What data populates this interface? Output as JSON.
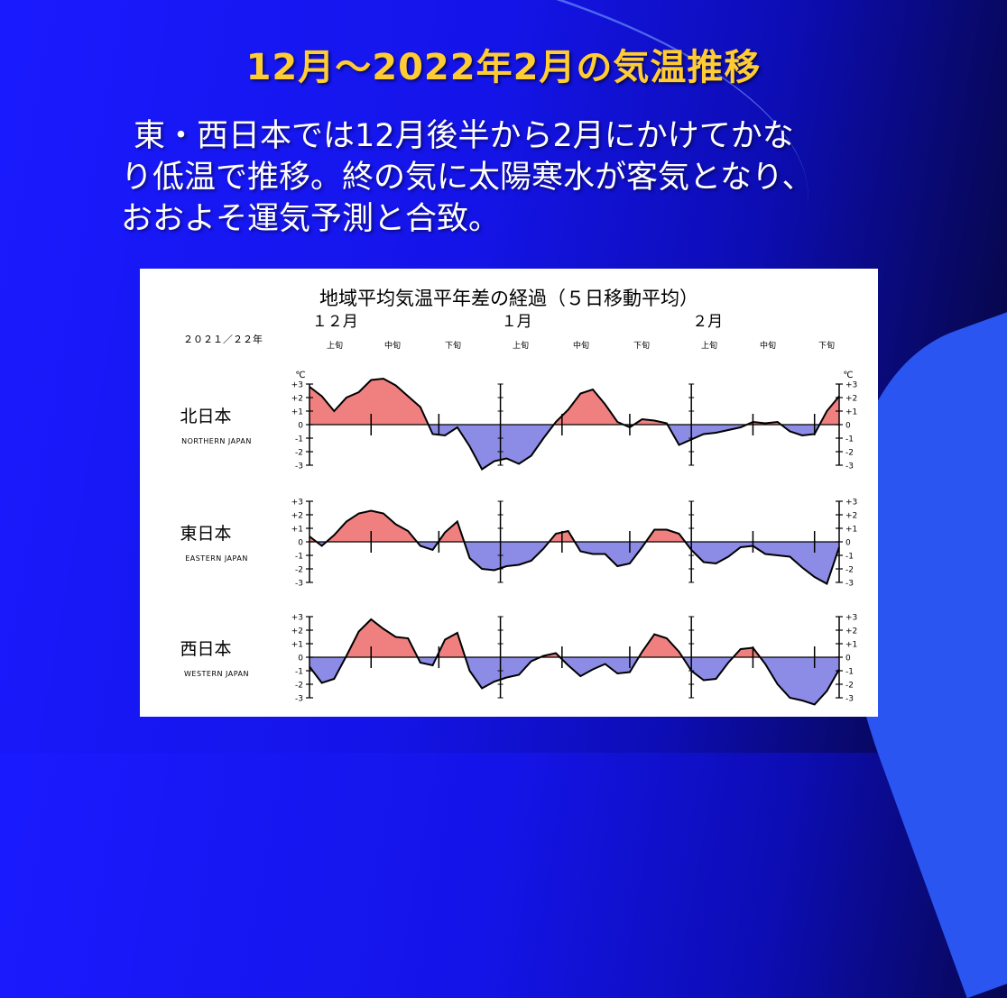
{
  "slide": {
    "title": "12月～2022年2月の気温推移",
    "body_lines": [
      "東・西日本では12月後半から2月にかけてかな",
      "り低温で推移。終の気に太陽寒水が客気となり、",
      "おおよそ運気予測と合致。"
    ]
  },
  "colors": {
    "title": "#ffcc33",
    "positive_fill": "#f08080",
    "negative_fill": "#8c8ce6",
    "line": "#000000"
  },
  "chart_data": {
    "type": "area",
    "title": "地域平均気温平年差の経過（５日移動平均）",
    "year_label": "２０２１／２２年",
    "unit": "℃",
    "months": [
      "１２月",
      "１月",
      "２月"
    ],
    "dekads": [
      "上旬",
      "中旬",
      "下旬",
      "上旬",
      "中旬",
      "下旬",
      "上旬",
      "中旬",
      "下旬"
    ],
    "x_range": [
      1,
      87
    ],
    "ylim": [
      -3,
      3
    ],
    "ytick_labels": [
      "+3",
      "+2",
      "+1",
      "0",
      "-1",
      "-2",
      "-3"
    ],
    "series": [
      {
        "name": "北日本",
        "name_en": "NORTHERN JAPAN",
        "x": [
          1,
          3,
          5,
          7,
          9,
          11,
          13,
          15,
          17,
          19,
          21,
          23,
          25,
          27,
          29,
          31,
          33,
          35,
          37,
          39,
          41,
          43,
          45,
          47,
          49,
          51,
          53,
          55,
          57,
          59,
          61,
          63,
          65,
          67,
          69,
          71,
          73,
          75,
          77,
          79,
          81,
          83,
          85,
          87
        ],
        "values": [
          2.8,
          2.1,
          1.0,
          2.0,
          2.4,
          3.3,
          3.4,
          2.9,
          2.1,
          1.3,
          -0.7,
          -0.8,
          -0.2,
          -1.6,
          -3.3,
          -2.7,
          -2.5,
          -2.9,
          -2.3,
          -1.0,
          0.2,
          1.1,
          2.3,
          2.6,
          1.5,
          0.2,
          -0.2,
          0.4,
          0.3,
          0.1,
          -1.5,
          -1.1,
          -0.7,
          -0.6,
          -0.4,
          -0.2,
          0.2,
          0.1,
          0.2,
          -0.5,
          -0.8,
          -0.7,
          1.0,
          2.1
        ]
      },
      {
        "name": "東日本",
        "name_en": "EASTERN JAPAN",
        "x": [
          1,
          3,
          5,
          7,
          9,
          11,
          13,
          15,
          17,
          19,
          21,
          23,
          25,
          27,
          29,
          31,
          33,
          35,
          37,
          39,
          41,
          43,
          45,
          47,
          49,
          51,
          53,
          55,
          57,
          59,
          61,
          63,
          65,
          67,
          69,
          71,
          73,
          75,
          77,
          79,
          81,
          83,
          85,
          87
        ],
        "values": [
          0.4,
          -0.3,
          0.5,
          1.5,
          2.1,
          2.3,
          2.1,
          1.3,
          0.8,
          -0.3,
          -0.6,
          0.7,
          1.5,
          -1.2,
          -2.0,
          -2.1,
          -1.8,
          -1.7,
          -1.4,
          -0.5,
          0.6,
          0.8,
          -0.7,
          -0.9,
          -0.9,
          -1.8,
          -1.6,
          -0.4,
          0.9,
          0.9,
          0.6,
          -0.6,
          -1.5,
          -1.6,
          -1.1,
          -0.4,
          -0.3,
          -0.9,
          -1.0,
          -1.1,
          -1.9,
          -2.6,
          -3.1,
          -0.4
        ]
      },
      {
        "name": "西日本",
        "name_en": "WESTERN JAPAN",
        "x": [
          1,
          3,
          5,
          7,
          9,
          11,
          13,
          15,
          17,
          19,
          21,
          23,
          25,
          27,
          29,
          31,
          33,
          35,
          37,
          39,
          41,
          43,
          45,
          47,
          49,
          51,
          53,
          55,
          57,
          59,
          61,
          63,
          65,
          67,
          69,
          71,
          73,
          75,
          77,
          79,
          81,
          83,
          85,
          87
        ],
        "values": [
          -0.7,
          -1.9,
          -1.6,
          0.1,
          1.9,
          2.8,
          2.1,
          1.5,
          1.4,
          -0.4,
          -0.6,
          1.3,
          1.8,
          -1.0,
          -2.3,
          -1.8,
          -1.5,
          -1.3,
          -0.3,
          0.1,
          0.3,
          -0.6,
          -1.4,
          -0.9,
          -0.5,
          -1.2,
          -1.1,
          0.4,
          1.7,
          1.4,
          0.4,
          -1.0,
          -1.7,
          -1.6,
          -0.4,
          0.6,
          0.7,
          -0.5,
          -2.0,
          -3.0,
          -3.2,
          -3.5,
          -2.5,
          -0.9
        ]
      }
    ]
  }
}
